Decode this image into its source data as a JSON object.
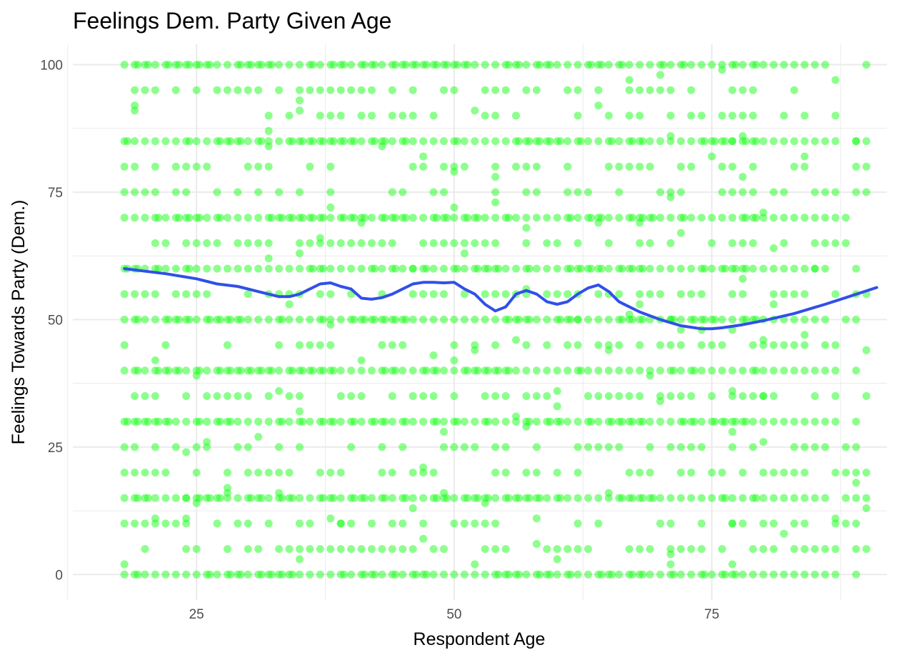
{
  "chart_data": {
    "type": "scatter",
    "title": "Feelings Dem. Party Given Age",
    "xlabel": "Respondent Age",
    "ylabel": "Feelings Towards Party (Dem.)",
    "xlim": [
      13,
      92
    ],
    "ylim": [
      -5,
      104
    ],
    "x_ticks": [
      25,
      50,
      75
    ],
    "y_ticks": [
      0,
      25,
      50,
      75,
      100
    ],
    "x_tick_labels": [
      "25",
      "50",
      "75"
    ],
    "y_tick_labels": [
      "0",
      "25",
      "50",
      "75",
      "100"
    ],
    "x_minor_ticks": [
      12.5,
      37.5,
      62.5,
      87.5
    ],
    "y_minor_ticks": [
      12.5,
      37.5,
      62.5,
      87.5
    ],
    "grid": true,
    "legend": "none",
    "colors": {
      "points": "#1aff1a",
      "smooth": "#3050e8",
      "grid": "#ebebeb",
      "tick_text": "#4d4d4d"
    },
    "point_opacity": 0.5,
    "points_y_levels": {
      "major": [
        0,
        15,
        30,
        40,
        50,
        60,
        70,
        85,
        100
      ],
      "medium": [
        5,
        10,
        20,
        25,
        35,
        45,
        55,
        65,
        75,
        80,
        90,
        95
      ]
    },
    "smooth_series": {
      "name": "",
      "x": [
        18,
        22,
        25,
        27,
        29,
        31,
        33,
        34,
        35,
        36,
        37,
        38,
        39,
        40,
        41,
        42,
        43,
        44,
        45,
        46,
        47,
        48,
        49,
        50,
        51,
        52,
        53,
        54,
        55,
        56,
        57,
        58,
        59,
        60,
        61,
        62,
        63,
        64,
        65,
        66,
        67,
        68,
        70,
        72,
        74,
        75,
        76,
        78,
        80,
        83,
        86,
        88,
        91
      ],
      "y": [
        60,
        59,
        58,
        57,
        56.5,
        55.5,
        54.5,
        54.5,
        55,
        56,
        57,
        57.2,
        56.5,
        56,
        54.2,
        54,
        54.3,
        55,
        56,
        57,
        57.3,
        57.3,
        57.2,
        57.3,
        56,
        55,
        53,
        51.7,
        52.5,
        55,
        55.7,
        55,
        53.5,
        53,
        53.5,
        55,
        56.2,
        56.8,
        55.5,
        53.5,
        52.5,
        51.5,
        50,
        48.8,
        48.2,
        48.2,
        48.4,
        49,
        49.8,
        51.2,
        53,
        54.3,
        56.3
      ]
    }
  }
}
